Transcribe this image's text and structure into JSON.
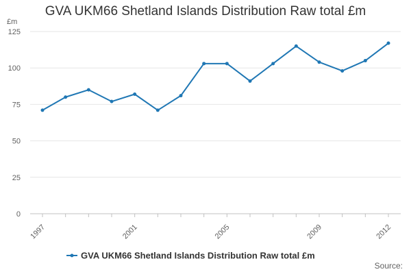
{
  "chart_data": {
    "type": "line",
    "title": "GVA UKM66 Shetland Islands Distribution Raw total £m",
    "ylabel": "£m",
    "xlabel": "",
    "x": [
      1997,
      1998,
      1999,
      2000,
      2001,
      2002,
      2003,
      2004,
      2005,
      2006,
      2007,
      2008,
      2009,
      2010,
      2011,
      2012
    ],
    "x_tick_labels": [
      "1997",
      "2001",
      "2005",
      "2009",
      "2012"
    ],
    "y_ticks": [
      0,
      25,
      50,
      75,
      100,
      125
    ],
    "ylim": [
      0,
      125
    ],
    "grid": true,
    "legend_position": "bottom-center",
    "series": [
      {
        "name": "GVA UKM66 Shetland Islands Distribution Raw total £m",
        "color": "#1f77b4",
        "values": [
          71,
          80,
          85,
          77,
          82,
          71,
          81,
          103,
          103,
          91,
          103,
          115,
          104,
          98,
          105,
          117
        ]
      }
    ]
  },
  "source_label": "Source:"
}
